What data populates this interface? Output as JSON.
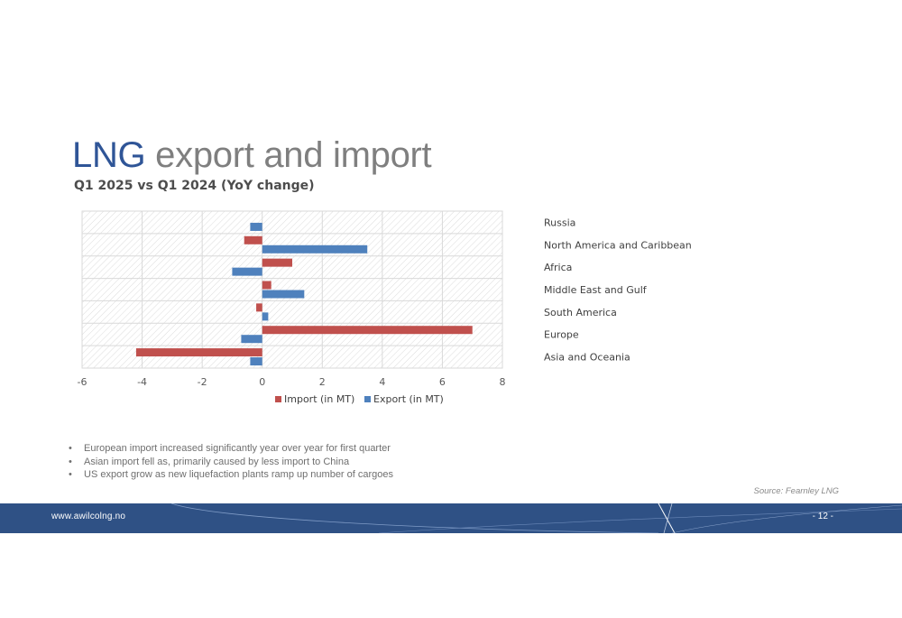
{
  "slide": {
    "title_accent": "LNG",
    "title_rest": " export and import",
    "subtitle": "Q1 2025 vs Q1 2024 (YoY change)",
    "bullets": [
      "European import increased significantly year over year for first quarter",
      "Asian import fell as, primarily caused by less import to China",
      "US export grow as new liquefaction plants ramp up number of cargoes"
    ],
    "source": "Source: Fearnley LNG",
    "footer_url": "www.awilcolng.no",
    "page_number": "- 12 -"
  },
  "colors": {
    "import": "#c0504d",
    "export": "#4f81bd",
    "title_accent": "#2f5597",
    "footer": "#2f5185"
  },
  "chart_data": {
    "type": "bar",
    "orientation": "horizontal",
    "title": "",
    "xlabel": "",
    "ylabel": "",
    "categories": [
      "Russia",
      "North America and Caribbean",
      "Africa",
      "Middle East and Gulf",
      "South America",
      "Europe",
      "Asia and Oceania"
    ],
    "series": [
      {
        "name": "Import (in MT)",
        "values": [
          null,
          -0.6,
          1.0,
          0.3,
          -0.2,
          7.0,
          -4.2
        ]
      },
      {
        "name": "Export (in MT)",
        "values": [
          -0.4,
          3.5,
          -1.0,
          1.4,
          0.2,
          -0.7,
          -0.4
        ]
      }
    ],
    "xlim": [
      -6,
      8
    ],
    "xticks": [
      -6,
      -4,
      -2,
      0,
      2,
      4,
      6,
      8
    ],
    "legend_position": "bottom",
    "category_labels_position": "right",
    "grid": true
  }
}
